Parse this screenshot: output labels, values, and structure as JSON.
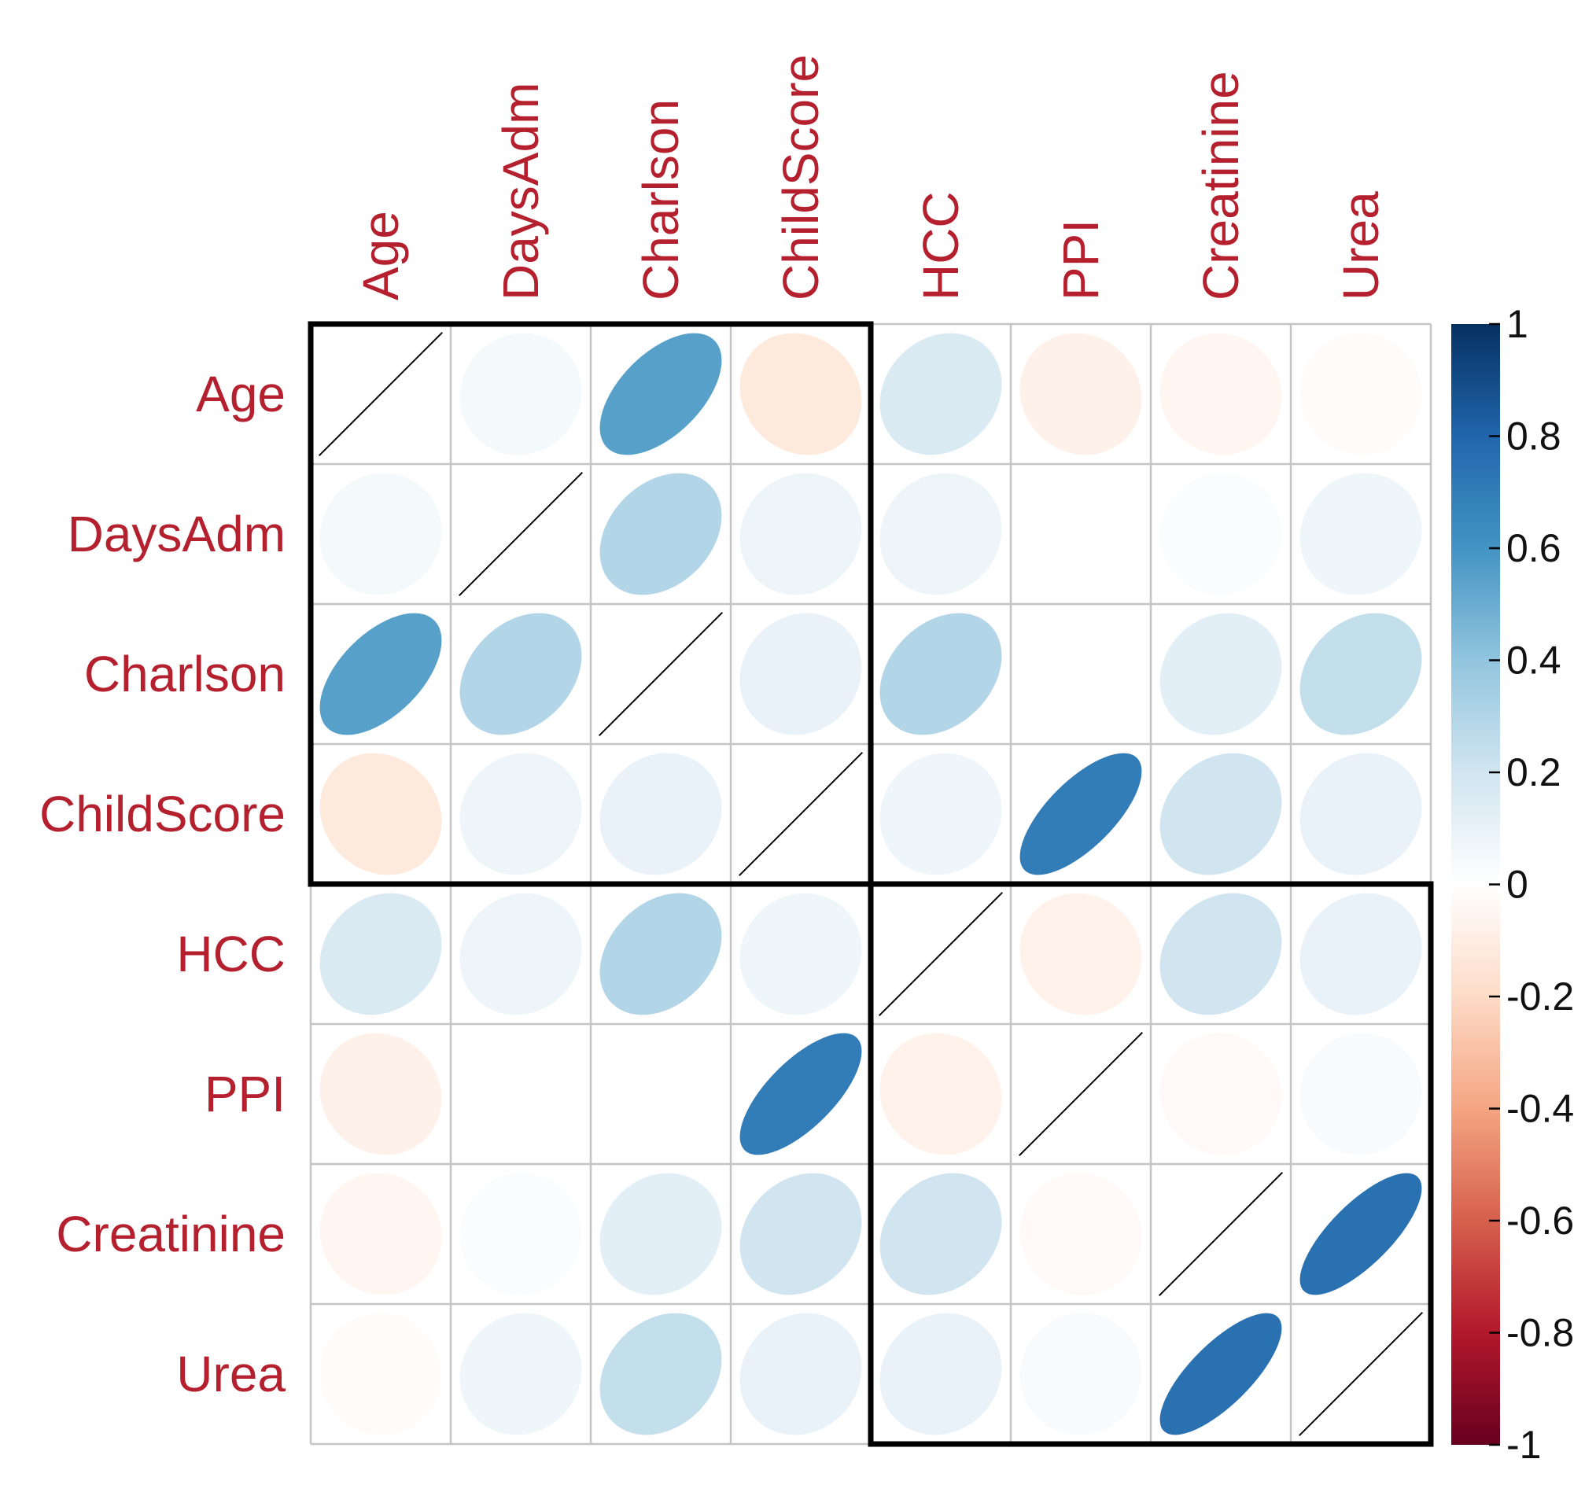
{
  "chart_data": {
    "type": "heatmap",
    "subtype": "correlation-matrix-ellipse",
    "variables": [
      "Age",
      "DaysAdm",
      "Charlson",
      "ChildScore",
      "HCC",
      "PPI",
      "Creatinine",
      "Urea"
    ],
    "matrix": [
      [
        1.0,
        0.05,
        0.55,
        -0.12,
        0.16,
        -0.08,
        -0.05,
        -0.02
      ],
      [
        0.05,
        1.0,
        0.3,
        0.08,
        0.08,
        0.0,
        0.02,
        0.07
      ],
      [
        0.55,
        0.3,
        1.0,
        0.1,
        0.3,
        0.0,
        0.12,
        0.24
      ],
      [
        -0.12,
        0.08,
        0.1,
        1.0,
        0.07,
        0.7,
        0.2,
        0.1
      ],
      [
        0.16,
        0.08,
        0.3,
        0.07,
        1.0,
        -0.07,
        0.2,
        0.1
      ],
      [
        -0.08,
        0.0,
        0.0,
        0.7,
        -0.07,
        1.0,
        -0.03,
        0.03
      ],
      [
        -0.05,
        0.02,
        0.12,
        0.2,
        0.2,
        -0.03,
        1.0,
        0.75
      ],
      [
        -0.02,
        0.07,
        0.24,
        0.1,
        0.1,
        0.03,
        0.75,
        1.0
      ]
    ],
    "clusters": [
      {
        "name": "cluster-1",
        "start": 0,
        "end": 3
      },
      {
        "name": "cluster-2",
        "start": 4,
        "end": 7
      }
    ],
    "colorbar": {
      "range": [
        -1,
        1
      ],
      "ticks": [
        "1",
        "0.8",
        "0.6",
        "0.4",
        "0.2",
        "0",
        "-0.2",
        "-0.4",
        "-0.6",
        "-0.8",
        "-1"
      ],
      "palette": [
        "#67001F",
        "#B2182B",
        "#D6604D",
        "#F4A582",
        "#FDDBC7",
        "#FFFFFF",
        "#D1E5F0",
        "#92C5DE",
        "#4393C3",
        "#2166AC",
        "#053061"
      ]
    },
    "label_color": "#b5202e"
  }
}
